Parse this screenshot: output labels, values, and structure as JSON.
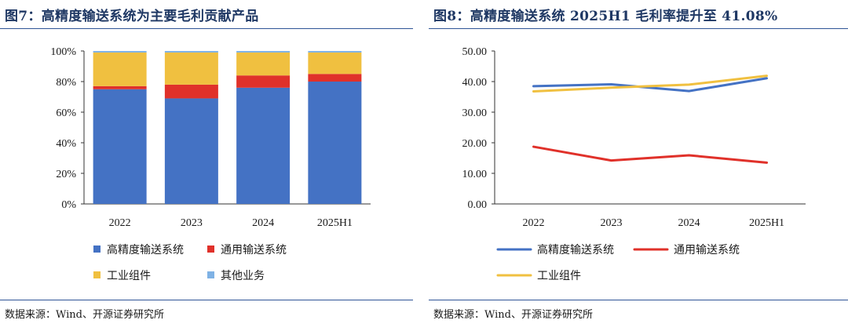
{
  "left": {
    "title": "图7：高精度输送系统为主要毛利贡献产品",
    "source": "数据来源：Wind、开源证券研究所"
  },
  "right": {
    "title": "图8：高精度输送系统 2025H1 毛利率提升至 41.08%",
    "source": "数据来源：Wind、开源证券研究所"
  },
  "chart_data": [
    {
      "type": "bar",
      "stacked": true,
      "title": "高精度输送系统为主要毛利贡献产品",
      "categories": [
        "2022",
        "2023",
        "2024",
        "2025H1"
      ],
      "series": [
        {
          "name": "高精度输送系统",
          "color": "#4472c4",
          "values": [
            75,
            69,
            76,
            80
          ]
        },
        {
          "name": "通用输送系统",
          "color": "#e0312a",
          "values": [
            2,
            9,
            8,
            5
          ]
        },
        {
          "name": "工业组件",
          "color": "#f0c040",
          "values": [
            22,
            21,
            15,
            14
          ]
        },
        {
          "name": "其他业务",
          "color": "#7fb2e5",
          "values": [
            1,
            1,
            1,
            1
          ]
        }
      ],
      "ylim": [
        0,
        100
      ],
      "yticks": [
        0,
        20,
        40,
        60,
        80,
        100
      ],
      "ytick_labels": [
        "0%",
        "20%",
        "40%",
        "60%",
        "80%",
        "100%"
      ],
      "legend_position": "bottom"
    },
    {
      "type": "line",
      "title": "高精度输送系统 2025H1 毛利率提升至 41.08%",
      "categories": [
        "2022",
        "2023",
        "2024",
        "2025H1"
      ],
      "series": [
        {
          "name": "高精度输送系统",
          "color": "#4472c4",
          "values": [
            38.5,
            39.1,
            36.9,
            41.08
          ]
        },
        {
          "name": "通用输送系统",
          "color": "#e0312a",
          "values": [
            18.7,
            14.2,
            15.9,
            13.5
          ]
        },
        {
          "name": "工业组件",
          "color": "#f0c040",
          "values": [
            36.8,
            38.0,
            39.0,
            41.9
          ]
        }
      ],
      "ylim": [
        0,
        50
      ],
      "yticks": [
        0,
        10,
        20,
        30,
        40,
        50
      ],
      "ytick_labels": [
        "0.00",
        "10.00",
        "20.00",
        "30.00",
        "40.00",
        "50.00"
      ],
      "legend_position": "bottom"
    }
  ]
}
